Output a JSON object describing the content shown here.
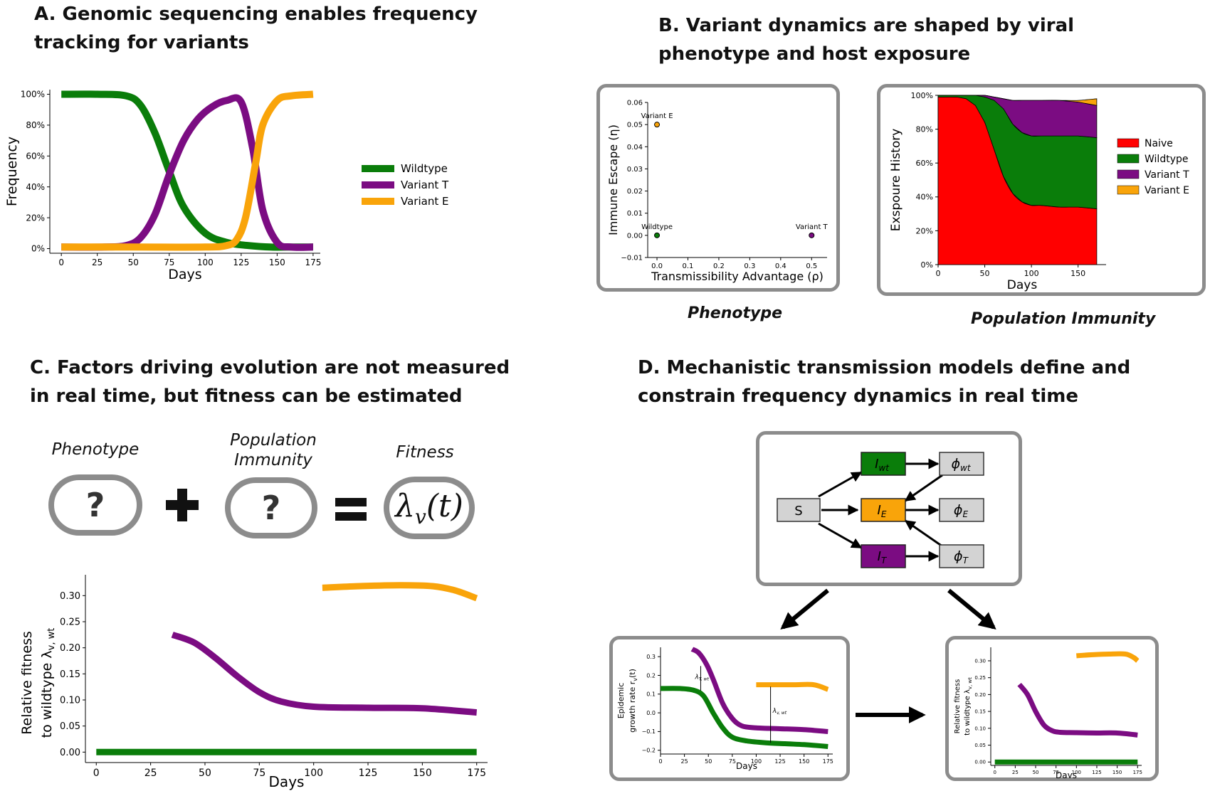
{
  "panels": {
    "a": {
      "title_line1": "A. Genomic sequencing enables frequency",
      "title_line2": "tracking for variants"
    },
    "b": {
      "title_line1": "B. Variant dynamics are shaped by viral",
      "title_line2": "phenotype and host exposure",
      "caption_left": "Phenotype",
      "caption_right": "Population Immunity"
    },
    "c": {
      "title_line1": "C. Factors driving evolution are not measured",
      "title_line2": "in real time, but fitness can be estimated",
      "label_phenotype": "Phenotype",
      "label_immunity_1": "Population",
      "label_immunity_2": "Immunity",
      "label_fitness": "Fitness",
      "q1": "?",
      "q2": "?",
      "fitness_symbol": "λ",
      "fitness_sub": "v",
      "fitness_arg": "(t)"
    },
    "d": {
      "title_line1": "D. Mechanistic transmission models define and",
      "title_line2": "constrain frequency dynamics in real time",
      "nodes": {
        "S": "S",
        "Iwt": "I",
        "Iwt_sub": "wt",
        "IE": "I",
        "IE_sub": "E",
        "IT": "I",
        "IT_sub": "T",
        "phiwt": "ϕ",
        "phiwt_sub": "wt",
        "phiE": "ϕ",
        "phiE_sub": "E",
        "phiT": "ϕ",
        "phiT_sub": "T"
      }
    }
  },
  "colors": {
    "wildtype": "#0a7d0a",
    "variant_t": "#7b0c82",
    "variant_e": "#f9a40a",
    "naive": "#ff0000",
    "box_border": "#8c8c8c",
    "node_gray": "#d3d3d3"
  },
  "chart_data": [
    {
      "id": "freq",
      "type": "line",
      "title": "",
      "xlabel": "Days",
      "ylabel": "Frequency",
      "xlim": [
        -8,
        180
      ],
      "ylim": [
        -3,
        103
      ],
      "xticks": [
        0,
        25,
        50,
        75,
        100,
        125,
        150,
        175
      ],
      "yticks": [
        0,
        20,
        40,
        60,
        80,
        100
      ],
      "ytick_labels": [
        "0%",
        "20%",
        "40%",
        "60%",
        "80%",
        "100%"
      ],
      "legend": "right",
      "series": [
        {
          "name": "Wildtype",
          "x": [
            0,
            25,
            45,
            55,
            65,
            75,
            85,
            100,
            115,
            130,
            145,
            160,
            175
          ],
          "y": [
            100,
            100,
            99,
            93,
            75,
            50,
            27,
            10,
            4,
            2,
            1,
            1,
            1
          ]
        },
        {
          "name": "Variant T",
          "x": [
            0,
            30,
            45,
            55,
            65,
            75,
            85,
            95,
            105,
            115,
            125,
            133,
            140,
            150,
            160,
            175
          ],
          "y": [
            1,
            1,
            2,
            7,
            22,
            48,
            70,
            84,
            92,
            96,
            95,
            65,
            25,
            4,
            1,
            1
          ]
        },
        {
          "name": "Variant E",
          "x": [
            0,
            50,
            100,
            115,
            122,
            128,
            135,
            140,
            150,
            160,
            175
          ],
          "y": [
            1,
            1,
            1,
            2,
            6,
            20,
            55,
            80,
            96,
            99,
            100
          ]
        }
      ]
    },
    {
      "id": "phenotype",
      "type": "scatter",
      "title": "",
      "xlabel": "Transmissibility Advantage (ρ)",
      "ylabel": "Immune Escape (η)",
      "xlim": [
        -0.03,
        0.55
      ],
      "ylim": [
        -0.01,
        0.06
      ],
      "xticks": [
        0.0,
        0.1,
        0.2,
        0.3,
        0.4,
        0.5
      ],
      "xtick_labels": [
        "0.0",
        "0.1",
        "0.2",
        "0.3",
        "0.4",
        "0.5"
      ],
      "yticks": [
        -0.01,
        0.0,
        0.01,
        0.02,
        0.03,
        0.04,
        0.05,
        0.06
      ],
      "ytick_labels": [
        "−0.01",
        "0.00",
        "0.01",
        "0.02",
        "0.03",
        "0.04",
        "0.05",
        "0.06"
      ],
      "points": [
        {
          "label": "Variant E",
          "x": 0.0,
          "y": 0.05
        },
        {
          "label": "Wildtype",
          "x": 0.0,
          "y": 0.0
        },
        {
          "label": "Variant T",
          "x": 0.5,
          "y": 0.0
        }
      ]
    },
    {
      "id": "exposure",
      "type": "area",
      "title": "",
      "xlabel": "Days",
      "ylabel": "Exspoure History",
      "xlim": [
        0,
        180
      ],
      "ylim": [
        0,
        100
      ],
      "xticks": [
        0,
        50,
        100,
        150
      ],
      "yticks": [
        0,
        20,
        40,
        60,
        80,
        100
      ],
      "ytick_labels": [
        "0%",
        "20%",
        "40%",
        "60%",
        "80%",
        "100%"
      ],
      "legend": "right",
      "x": [
        0,
        20,
        30,
        40,
        50,
        60,
        70,
        80,
        90,
        100,
        110,
        130,
        150,
        170
      ],
      "series": [
        {
          "name": "Naive",
          "values": [
            99,
            99,
            98,
            94,
            84,
            68,
            52,
            42,
            37,
            35,
            35,
            34,
            34,
            33
          ]
        },
        {
          "name": "Wildtype",
          "values": [
            1,
            1,
            2,
            6,
            15,
            29,
            40,
            41,
            41,
            41,
            41,
            42,
            42,
            42
          ]
        },
        {
          "name": "Variant T",
          "values": [
            0,
            0,
            0,
            0,
            1,
            2,
            6,
            14,
            19,
            21,
            21,
            21,
            20,
            19
          ]
        },
        {
          "name": "Variant E",
          "values": [
            0,
            0,
            0,
            0,
            0,
            0,
            0,
            0,
            0,
            0,
            0,
            0,
            1,
            4
          ]
        }
      ]
    },
    {
      "id": "relfit",
      "type": "line",
      "title": "",
      "xlabel": "Days",
      "ylabel": "Relative fitness",
      "ylabel2": "to wildtype λ",
      "ylabel2_sub": "v, wt",
      "xlim": [
        -5,
        180
      ],
      "ylim": [
        -0.02,
        0.34
      ],
      "xticks": [
        0,
        25,
        50,
        75,
        100,
        125,
        150,
        175
      ],
      "yticks": [
        0.0,
        0.05,
        0.1,
        0.15,
        0.2,
        0.25,
        0.3
      ],
      "ytick_labels": [
        "0.00",
        "0.05",
        "0.10",
        "0.15",
        "0.20",
        "0.25",
        "0.30"
      ],
      "series": [
        {
          "name": "Wildtype",
          "x": [
            0,
            175
          ],
          "y": [
            0,
            0
          ]
        },
        {
          "name": "Variant T",
          "x": [
            35,
            45,
            55,
            65,
            75,
            85,
            100,
            125,
            150,
            175
          ],
          "y": [
            0.225,
            0.21,
            0.18,
            0.145,
            0.115,
            0.097,
            0.087,
            0.085,
            0.084,
            0.076
          ]
        },
        {
          "name": "Variant E",
          "x": [
            104,
            120,
            140,
            155,
            165,
            175
          ],
          "y": [
            0.315,
            0.318,
            0.32,
            0.318,
            0.31,
            0.295
          ]
        }
      ]
    },
    {
      "id": "growth",
      "type": "line",
      "title": "",
      "xlabel": "Days",
      "ylabel": "Epidemic",
      "ylabel2": "growth rate r",
      "ylabel2_sub": "v",
      "ylabel2_arg": "(t)",
      "annot1": "λ",
      "annot1_sub": "T, wt",
      "annot2": "λ",
      "annot2_sub": "v, wt",
      "xlim": [
        0,
        180
      ],
      "ylim": [
        -0.22,
        0.35
      ],
      "xticks": [
        0,
        25,
        50,
        75,
        100,
        125,
        150,
        175
      ],
      "yticks": [
        -0.2,
        -0.1,
        0.0,
        0.1,
        0.2,
        0.3
      ],
      "ytick_labels": [
        "−0.2",
        "−0.1",
        "0.0",
        "0.1",
        "0.2",
        "0.3"
      ],
      "series": [
        {
          "name": "Wildtype",
          "x": [
            0,
            20,
            35,
            45,
            55,
            65,
            75,
            90,
            110,
            130,
            150,
            175
          ],
          "y": [
            0.13,
            0.13,
            0.12,
            0.09,
            0.0,
            -0.08,
            -0.13,
            -0.15,
            -0.16,
            -0.165,
            -0.17,
            -0.18
          ]
        },
        {
          "name": "Variant T",
          "x": [
            33,
            40,
            48,
            55,
            65,
            75,
            85,
            100,
            125,
            150,
            175
          ],
          "y": [
            0.34,
            0.32,
            0.26,
            0.18,
            0.05,
            -0.03,
            -0.07,
            -0.08,
            -0.085,
            -0.09,
            -0.1
          ]
        },
        {
          "name": "Variant E",
          "x": [
            100,
            120,
            140,
            160,
            175
          ],
          "y": [
            0.15,
            0.15,
            0.15,
            0.15,
            0.125
          ]
        }
      ]
    },
    {
      "id": "relfit_small",
      "type": "line",
      "title": "",
      "xlabel": "Days",
      "ylabel": "Relative fitness",
      "ylabel2": "to wildtype λ",
      "ylabel2_sub": "v, wt",
      "xlim": [
        -5,
        180
      ],
      "ylim": [
        -0.01,
        0.34
      ],
      "xticks": [
        0,
        25,
        50,
        75,
        100,
        125,
        150,
        175
      ],
      "yticks": [
        0.0,
        0.05,
        0.1,
        0.15,
        0.2,
        0.25,
        0.3
      ],
      "ytick_labels": [
        "0.00",
        "0.05",
        "0.10",
        "0.15",
        "0.20",
        "0.25",
        "0.30"
      ],
      "series": [
        {
          "name": "Wildtype",
          "x": [
            0,
            175
          ],
          "y": [
            0,
            0
          ]
        },
        {
          "name": "Variant T",
          "x": [
            30,
            40,
            50,
            60,
            70,
            80,
            100,
            125,
            150,
            175
          ],
          "y": [
            0.23,
            0.2,
            0.15,
            0.11,
            0.093,
            0.088,
            0.087,
            0.086,
            0.086,
            0.08
          ]
        },
        {
          "name": "Variant E",
          "x": [
            100,
            120,
            140,
            160,
            170,
            175
          ],
          "y": [
            0.315,
            0.318,
            0.32,
            0.32,
            0.31,
            0.3
          ]
        }
      ]
    }
  ]
}
